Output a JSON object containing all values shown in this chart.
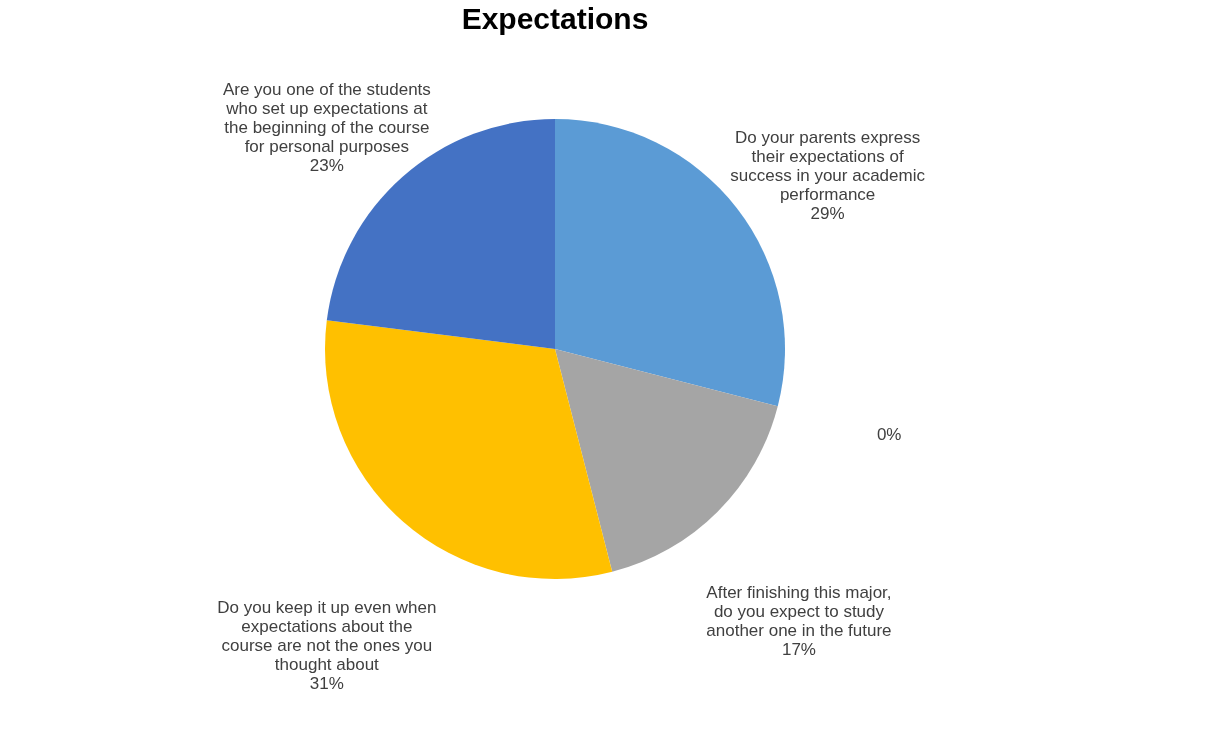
{
  "chart_data": {
    "type": "pie",
    "title": "Expectations",
    "categories": [
      "Do your parents express their expectations of success in your academic performance",
      null,
      "After finishing this major, do you expect to study another one in the future",
      "Do you keep it up even when expectations about the course are not the ones you thought about",
      "Are you one of the students who set up expectations at the beginning of the course for personal purposes"
    ],
    "values": [
      29,
      0,
      17,
      31,
      23
    ],
    "colors": [
      "#5b9bd5",
      "#ed7d31",
      "#a5a5a5",
      "#ffc000",
      "#4472c4"
    ],
    "value_labels": [
      "29%",
      "0%",
      "17%",
      "31%",
      "23%"
    ],
    "legend": false
  }
}
